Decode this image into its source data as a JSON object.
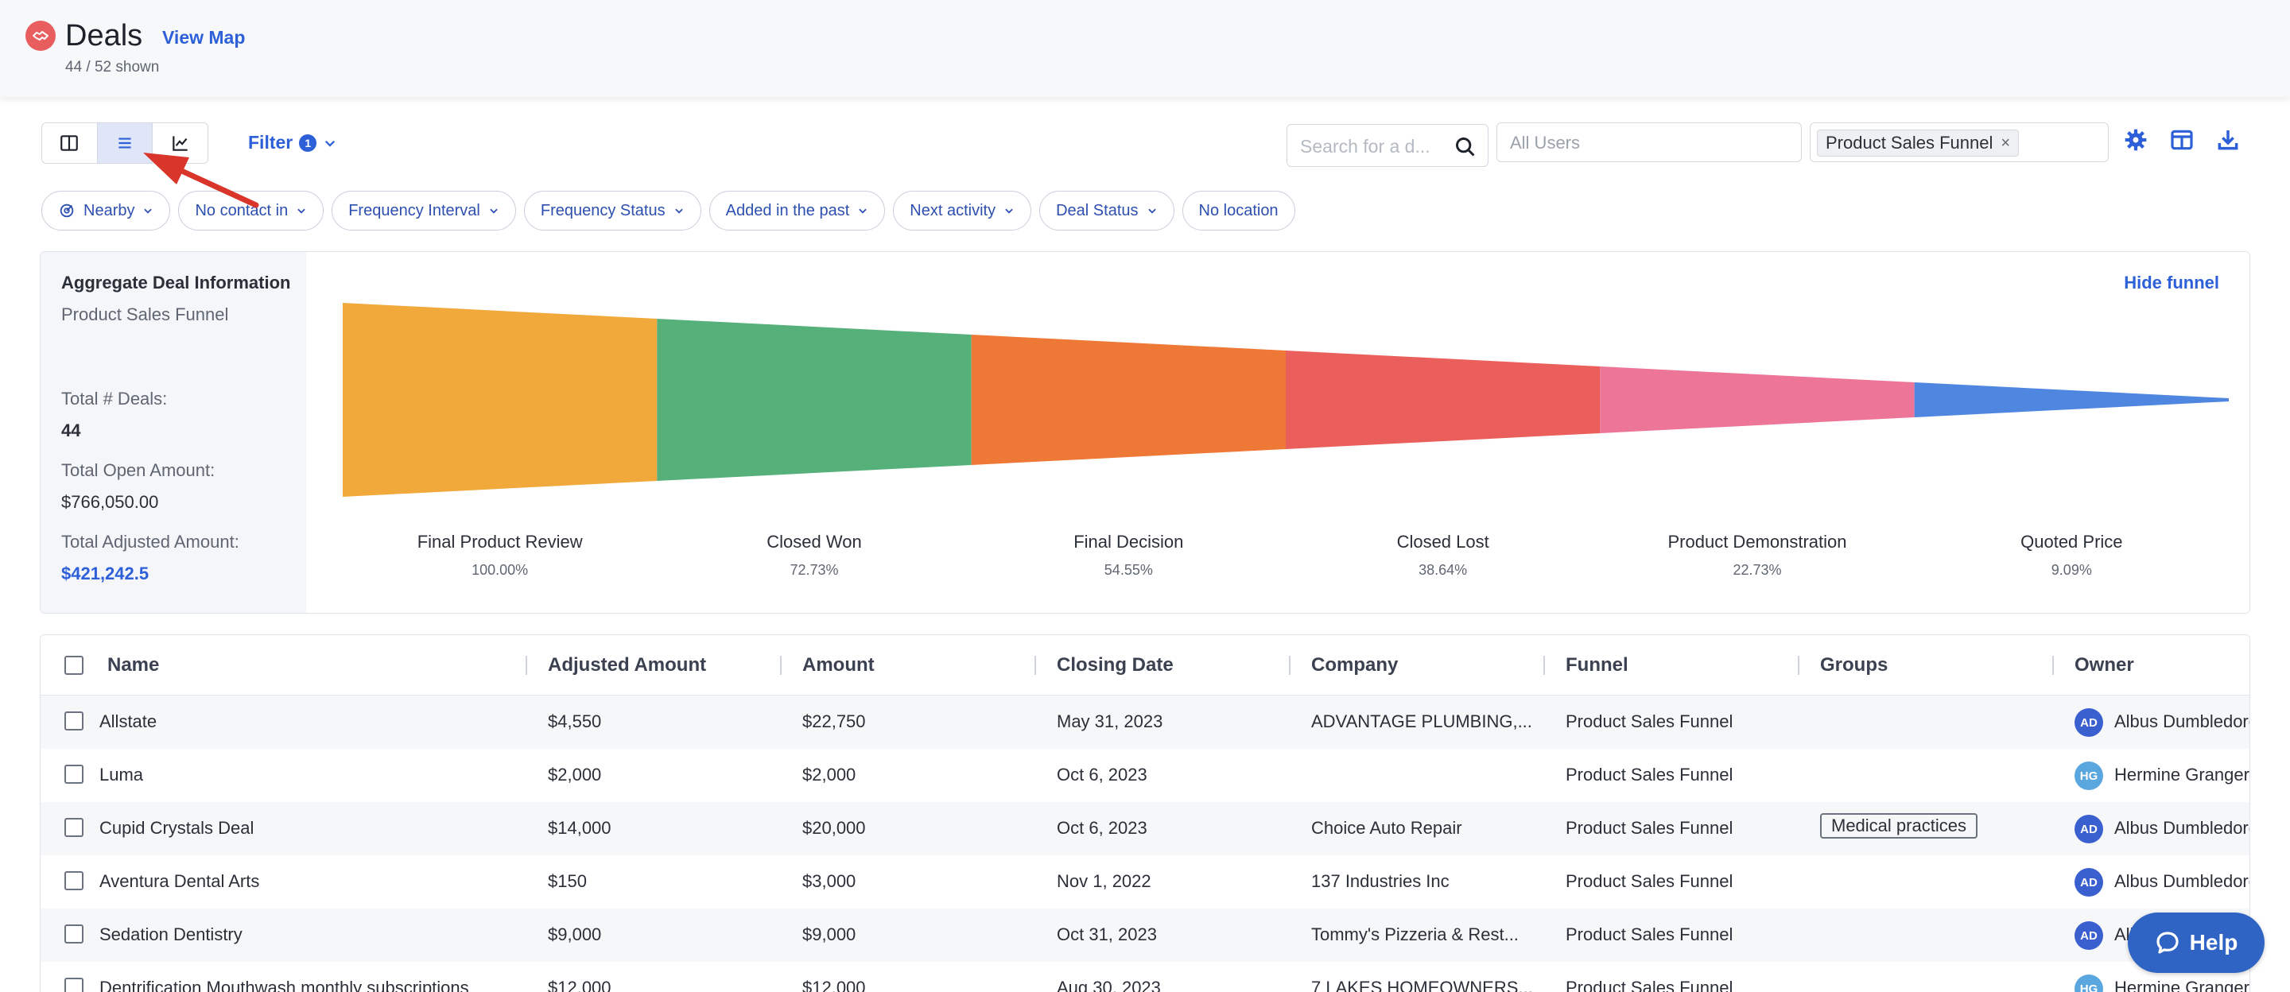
{
  "header": {
    "title": "Deals",
    "view_map": "View Map",
    "shown_count": "44 / 52 shown"
  },
  "toolbar": {
    "view_modes": [
      "board-view-icon",
      "list-view-icon",
      "chart-view-icon"
    ],
    "active_view": "list",
    "filter_label": "Filter",
    "filter_count": "1",
    "search_placeholder": "Search for a d...",
    "users_placeholder": "All Users",
    "funnel_chip": "Product Sales Funnel",
    "funnel_chip_remove": "×"
  },
  "quick_filters": [
    "Nearby",
    "No contact in",
    "Frequency Interval",
    "Frequency Status",
    "Added in the past",
    "Next activity",
    "Deal Status",
    "No location"
  ],
  "aggregate": {
    "title": "Aggregate Deal Information",
    "funnel_name": "Product Sales Funnel",
    "total_deals_label": "Total # Deals:",
    "total_deals": "44",
    "total_open_label": "Total Open Amount:",
    "total_open": "$766,050.00",
    "total_adjusted_label": "Total Adjusted Amount:",
    "total_adjusted": "$421,242.5",
    "hide_funnel": "Hide funnel"
  },
  "chart_data": {
    "type": "funnel",
    "stages": [
      {
        "name": "Final Product Review",
        "percent": "100.00%",
        "value": 100.0,
        "color": "#f2a93b"
      },
      {
        "name": "Closed Won",
        "percent": "72.73%",
        "value": 72.73,
        "color": "#55b07a"
      },
      {
        "name": "Final Decision",
        "percent": "54.55%",
        "value": 54.55,
        "color": "#ee7836"
      },
      {
        "name": "Closed Lost",
        "percent": "38.64%",
        "value": 38.64,
        "color": "#ea5f5b"
      },
      {
        "name": "Product Demonstration",
        "percent": "22.73%",
        "value": 22.73,
        "color": "#ec7598"
      },
      {
        "name": "Quoted Price",
        "percent": "9.09%",
        "value": 9.09,
        "color": "#4f86e0"
      }
    ]
  },
  "table": {
    "columns": [
      "Name",
      "Adjusted Amount",
      "Amount",
      "Closing Date",
      "Company",
      "Funnel",
      "Groups",
      "Owner"
    ],
    "rows": [
      {
        "name": "Allstate",
        "adjusted": "$4,550",
        "amount": "$22,750",
        "closing": "May 31, 2023",
        "company": "ADVANTAGE PLUMBING,...",
        "funnel": "Product Sales Funnel",
        "group": "",
        "owner_initials": "AD",
        "owner": "Albus Dumbledore"
      },
      {
        "name": "Luma",
        "adjusted": "$2,000",
        "amount": "$2,000",
        "closing": "Oct 6, 2023",
        "company": "",
        "funnel": "Product Sales Funnel",
        "group": "",
        "owner_initials": "HG",
        "owner": "Hermine Granger"
      },
      {
        "name": "Cupid Crystals Deal",
        "adjusted": "$14,000",
        "amount": "$20,000",
        "closing": "Oct 6, 2023",
        "company": "Choice Auto Repair",
        "funnel": "Product Sales Funnel",
        "group": "Medical practices",
        "owner_initials": "AD",
        "owner": "Albus Dumbledore"
      },
      {
        "name": "Aventura Dental Arts",
        "adjusted": "$150",
        "amount": "$3,000",
        "closing": "Nov 1, 2022",
        "company": "137 Industries Inc",
        "funnel": "Product Sales Funnel",
        "group": "",
        "owner_initials": "AD",
        "owner": "Albus Dumbledore"
      },
      {
        "name": "Sedation Dentistry",
        "adjusted": "$9,000",
        "amount": "$9,000",
        "closing": "Oct 31, 2023",
        "company": "Tommy's Pizzeria & Rest...",
        "funnel": "Product Sales Funnel",
        "group": "",
        "owner_initials": "AD",
        "owner": "Albus Dumbledore"
      },
      {
        "name": "Dentrification Mouthwash monthly subscriptions",
        "adjusted": "$12,000",
        "amount": "$12,000",
        "closing": "Aug 30, 2023",
        "company": "7 LAKES HOMEOWNERS...",
        "funnel": "Product Sales Funnel",
        "group": "",
        "owner_initials": "HG",
        "owner": "Hermine Granger"
      }
    ]
  },
  "help": {
    "label": "Help"
  }
}
